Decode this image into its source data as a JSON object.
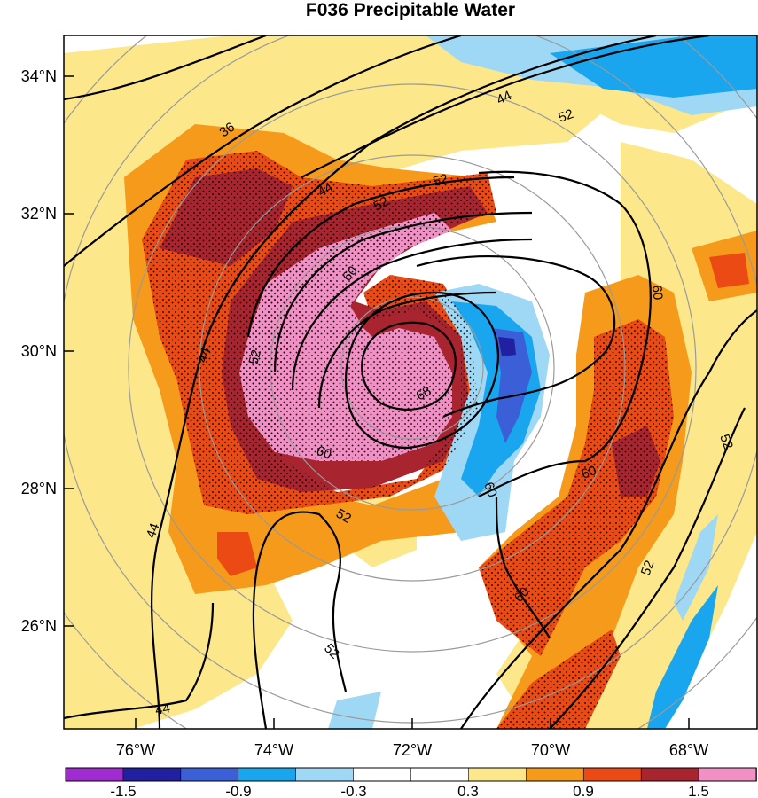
{
  "title": "F036 Precipitable Water",
  "lat_labels": [
    "34°N",
    "32°N",
    "30°N",
    "28°N",
    "26°N"
  ],
  "lon_labels": [
    "76°W",
    "74°W",
    "72°W",
    "70°W",
    "68°W"
  ],
  "colorbar": {
    "labels": [
      "-1.5",
      "-0.9",
      "-0.3",
      "0.3",
      "0.9",
      "1.5"
    ],
    "colors": [
      "#a02bd0",
      "#2020a0",
      "#3a5fd6",
      "#1aa6ee",
      "#9fd8f5",
      "#ffffff",
      "#ffffff",
      "#fce78a",
      "#f59a1a",
      "#ec4a14",
      "#a8242e",
      "#f28fc5"
    ]
  },
  "contour_labels": [
    "36",
    "44",
    "44",
    "44",
    "44",
    "44",
    "52",
    "52",
    "52",
    "52",
    "52",
    "52",
    "52",
    "52",
    "60",
    "60",
    "60",
    "60",
    "60",
    "60",
    "68"
  ],
  "palette": {
    "pink": "#f28fc5",
    "darkred": "#a8242e",
    "red": "#ec4a14",
    "orange": "#f59a1a",
    "yellow": "#fce78a",
    "lightblue": "#9fd8f5",
    "blue": "#1aa6ee",
    "mblue": "#3a5fd6",
    "navy": "#2020a0"
  }
}
